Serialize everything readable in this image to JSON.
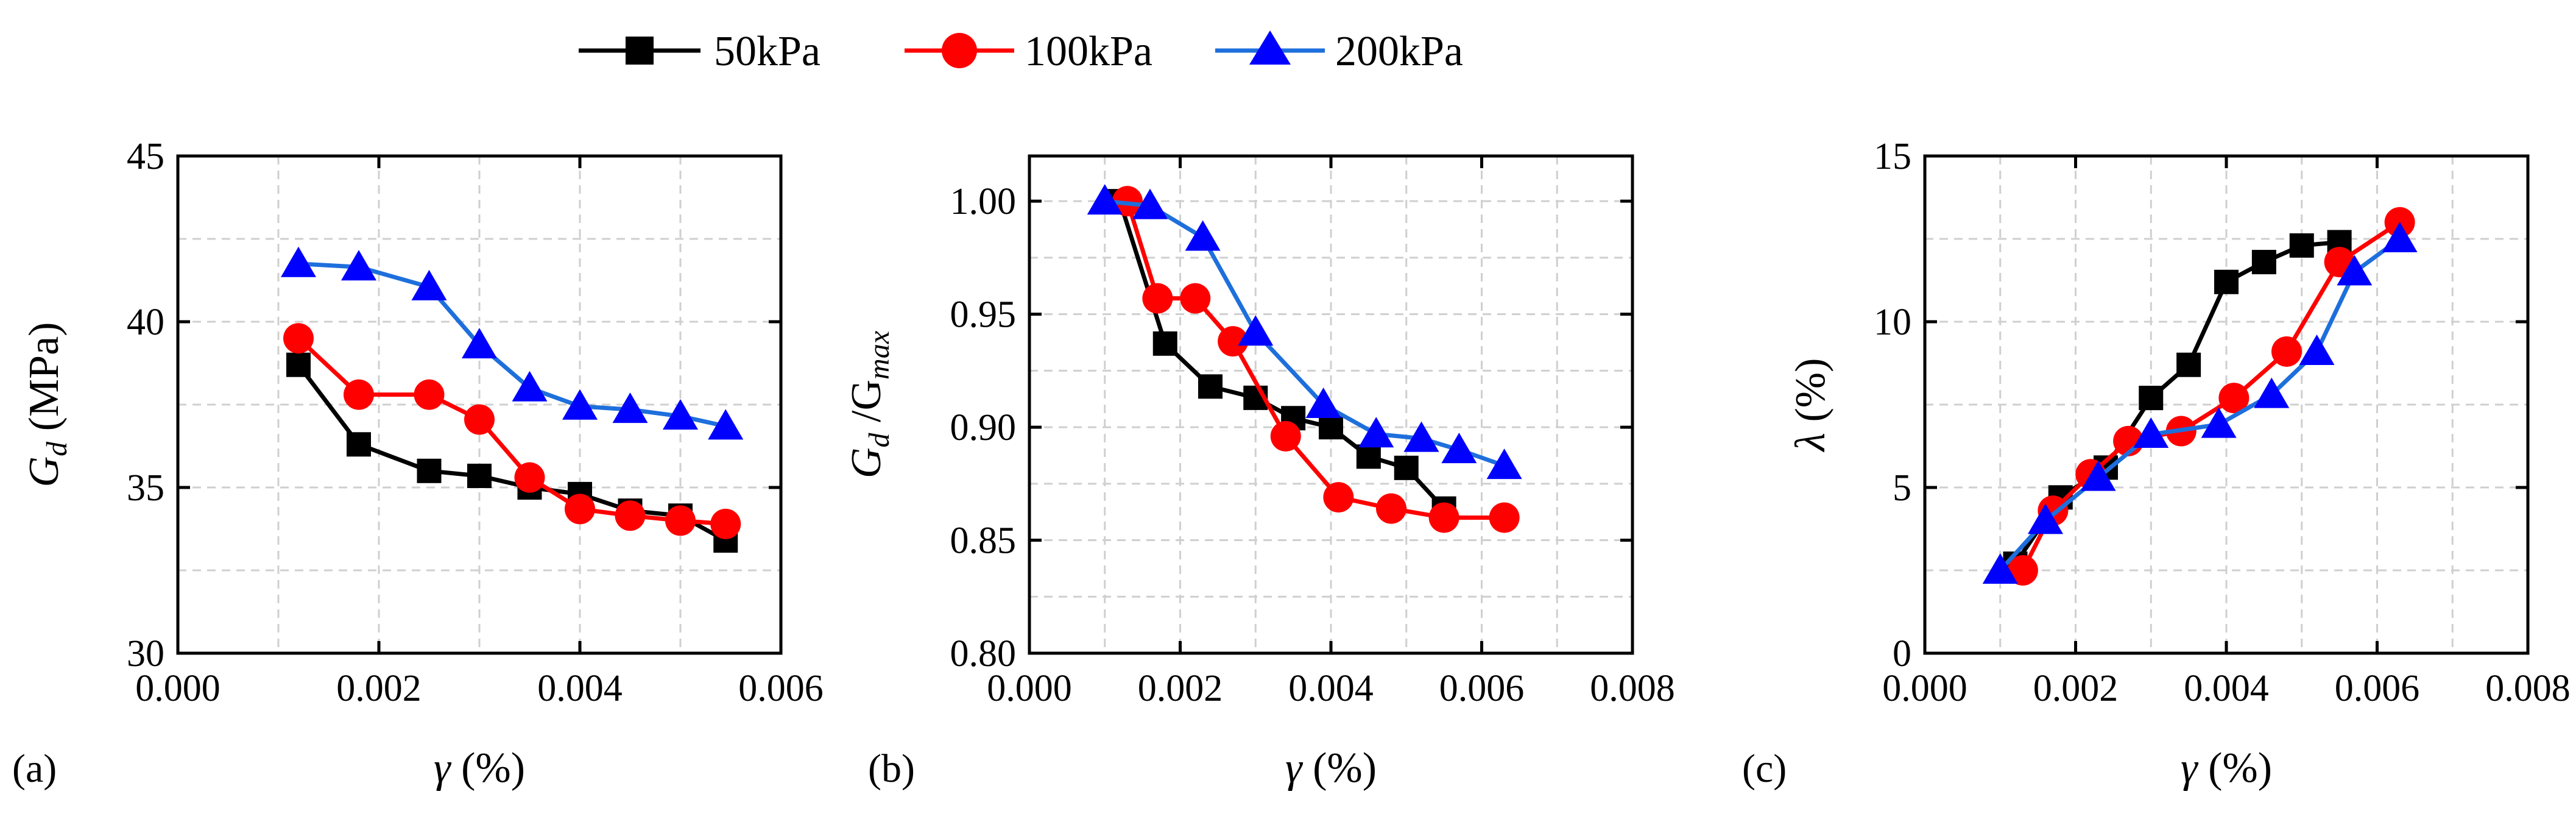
{
  "legend": [
    {
      "name": "50kPa",
      "color": "#000000",
      "marker": "square"
    },
    {
      "name": "100kPa",
      "color": "#ff0000",
      "marker": "circle"
    },
    {
      "name": "200kPa",
      "color": "#0000ff",
      "line_color": "#1e6fdc",
      "marker": "triangle"
    }
  ],
  "chart_data": [
    {
      "type": "line",
      "panel_label": "(a)",
      "ylabel_main": "G",
      "ylabel_sub": "d",
      "ylabel_rest": " (MPa)",
      "xlabel_main": "γ",
      "xlabel_rest": " (%)",
      "xlim": [
        0.0,
        0.006
      ],
      "ylim": [
        30,
        45
      ],
      "xticks": [
        0.0,
        0.002,
        0.004,
        0.006
      ],
      "xtick_labels": [
        "0.000",
        "0.002",
        "0.004",
        "0.006"
      ],
      "yticks": [
        30,
        35,
        40,
        45
      ],
      "ytick_labels": [
        "30",
        "35",
        "40",
        "45"
      ],
      "xgrid": [
        0.001,
        0.002,
        0.003,
        0.004,
        0.005
      ],
      "ygrid": [
        32.5,
        35,
        37.5,
        40,
        42.5
      ],
      "series": [
        {
          "name": "50kPa",
          "x": [
            0.0012,
            0.0018,
            0.0025,
            0.003,
            0.0035,
            0.004,
            0.0045,
            0.005,
            0.00545
          ],
          "y": [
            38.7,
            36.3,
            35.5,
            35.35,
            35.0,
            34.8,
            34.3,
            34.15,
            33.4
          ]
        },
        {
          "name": "100kPa",
          "x": [
            0.0012,
            0.0018,
            0.0025,
            0.003,
            0.0035,
            0.004,
            0.0045,
            0.005,
            0.00545
          ],
          "y": [
            39.5,
            37.8,
            37.8,
            37.05,
            35.3,
            34.35,
            34.15,
            34.0,
            33.9
          ]
        },
        {
          "name": "200kPa",
          "x": [
            0.0012,
            0.0018,
            0.0025,
            0.003,
            0.0035,
            0.004,
            0.0045,
            0.005,
            0.00545
          ],
          "y": [
            41.75,
            41.65,
            41.05,
            39.3,
            38.0,
            37.45,
            37.35,
            37.15,
            36.85
          ]
        }
      ]
    },
    {
      "type": "line",
      "panel_label": "(b)",
      "ylabel_main": "G",
      "ylabel_sub": "d",
      "ylabel_mid": " /G",
      "ylabel_sub2": "max",
      "xlabel_main": "γ",
      "xlabel_rest": " (%)",
      "xlim": [
        0.0,
        0.008
      ],
      "ylim": [
        0.8,
        1.02
      ],
      "xticks": [
        0.0,
        0.002,
        0.004,
        0.006,
        0.008
      ],
      "xtick_labels": [
        "0.000",
        "0.002",
        "0.004",
        "0.006",
        "0.008"
      ],
      "yticks": [
        0.8,
        0.85,
        0.9,
        0.95,
        1.0
      ],
      "ytick_labels": [
        "0.80",
        "0.85",
        "0.90",
        "0.95",
        "1.00"
      ],
      "xgrid": [
        0.001,
        0.002,
        0.003,
        0.004,
        0.005,
        0.006,
        0.007
      ],
      "ygrid": [
        0.825,
        0.85,
        0.875,
        0.9,
        0.925,
        0.95,
        0.975,
        1.0
      ],
      "series": [
        {
          "name": "50kPa",
          "x": [
            0.0012,
            0.0018,
            0.0024,
            0.003,
            0.0035,
            0.004,
            0.0045,
            0.005,
            0.0055
          ],
          "y": [
            1.0,
            0.937,
            0.918,
            0.913,
            0.904,
            0.9,
            0.887,
            0.882,
            0.864
          ]
        },
        {
          "name": "100kPa",
          "x": [
            0.0013,
            0.0017,
            0.0022,
            0.0027,
            0.0034,
            0.0041,
            0.0048,
            0.0055,
            0.0063
          ],
          "y": [
            1.0,
            0.957,
            0.957,
            0.938,
            0.896,
            0.869,
            0.864,
            0.86,
            0.86
          ]
        },
        {
          "name": "200kPa",
          "x": [
            0.001,
            0.0016,
            0.0023,
            0.003,
            0.0039,
            0.0046,
            0.0052,
            0.0057,
            0.0063
          ],
          "y": [
            1.0,
            0.998,
            0.984,
            0.942,
            0.91,
            0.897,
            0.895,
            0.89,
            0.883
          ]
        }
      ]
    },
    {
      "type": "line",
      "panel_label": "(c)",
      "ylabel_main": "λ",
      "ylabel_rest": " (%)",
      "xlabel_main": "γ",
      "xlabel_rest": " (%)",
      "xlim": [
        0.0,
        0.008
      ],
      "ylim": [
        0,
        15
      ],
      "xticks": [
        0.0,
        0.002,
        0.004,
        0.006,
        0.008
      ],
      "xtick_labels": [
        "0.000",
        "0.002",
        "0.004",
        "0.006",
        "0.008"
      ],
      "yticks": [
        0,
        5,
        10,
        15
      ],
      "ytick_labels": [
        "0",
        "5",
        "10",
        "15"
      ],
      "xgrid": [
        0.001,
        0.002,
        0.003,
        0.004,
        0.005,
        0.006,
        0.007
      ],
      "ygrid": [
        2.5,
        5,
        7.5,
        10,
        12.5
      ],
      "series": [
        {
          "name": "50kPa",
          "x": [
            0.0012,
            0.0018,
            0.0024,
            0.003,
            0.0035,
            0.004,
            0.0045,
            0.005,
            0.0055
          ],
          "y": [
            2.7,
            4.7,
            5.6,
            7.7,
            8.7,
            11.2,
            11.8,
            12.3,
            12.4
          ]
        },
        {
          "name": "100kPa",
          "x": [
            0.0013,
            0.0017,
            0.0022,
            0.0027,
            0.0034,
            0.0041,
            0.0048,
            0.0055,
            0.0063
          ],
          "y": [
            2.5,
            4.3,
            5.4,
            6.4,
            6.7,
            7.7,
            9.1,
            11.8,
            13.0
          ]
        },
        {
          "name": "200kPa",
          "x": [
            0.001,
            0.0016,
            0.0023,
            0.003,
            0.0039,
            0.0046,
            0.0052,
            0.0057,
            0.0063
          ],
          "y": [
            2.5,
            4.0,
            5.3,
            6.6,
            6.9,
            7.8,
            9.1,
            11.5,
            12.5
          ]
        }
      ]
    }
  ]
}
